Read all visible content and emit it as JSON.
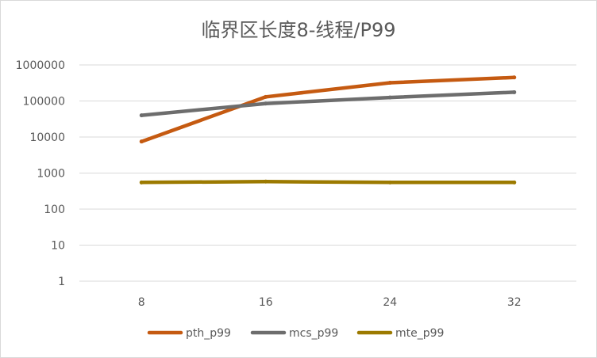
{
  "chart_data": {
    "type": "line",
    "title": "临界区长度8-线程/P99",
    "xlabel": "",
    "ylabel": "",
    "categories": [
      "8",
      "16",
      "24",
      "32"
    ],
    "y_scale": "log",
    "ylim": [
      1,
      1000000
    ],
    "y_ticks": [
      "1",
      "10",
      "100",
      "1000",
      "10000",
      "100000",
      "1000000"
    ],
    "grid": true,
    "legend_position": "bottom",
    "series": [
      {
        "name": "pth_p99",
        "color": "#c55a11",
        "values": [
          7500,
          130000,
          320000,
          450000
        ]
      },
      {
        "name": "mcs_p99",
        "color": "#6d6d6d",
        "values": [
          40000,
          85000,
          125000,
          175000
        ]
      },
      {
        "name": "mte_p99",
        "color": "#9c7a00",
        "values": [
          550,
          580,
          550,
          550
        ]
      }
    ]
  }
}
